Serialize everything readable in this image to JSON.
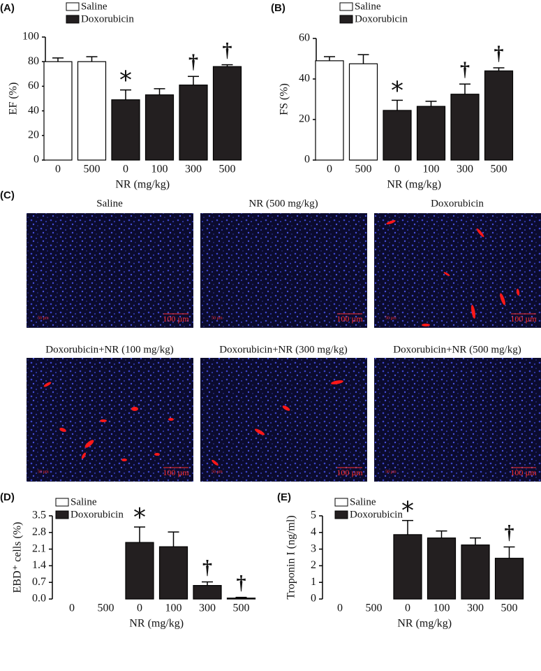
{
  "chart_data": [
    {
      "type": "bar",
      "panel_label": "(A)",
      "ylabel": "EF (%)",
      "xlabel": "NR (mg/kg)",
      "categories": [
        "0",
        "500",
        "0",
        "100",
        "300",
        "500"
      ],
      "series": [
        {
          "name": "Saline",
          "color": "#ffffff",
          "values": [
            80,
            80,
            null,
            null,
            null,
            null
          ],
          "errors": [
            3,
            4,
            null,
            null,
            null,
            null
          ]
        },
        {
          "name": "Doxorubicin",
          "color": "#231f20",
          "values": [
            null,
            null,
            49,
            53,
            61,
            76
          ],
          "errors": [
            null,
            null,
            8,
            5,
            7,
            1.5
          ]
        }
      ],
      "markers": [
        null,
        null,
        "*",
        null,
        "†",
        "†"
      ],
      "ylim": [
        0,
        100
      ],
      "yticks": [
        0,
        20,
        40,
        60,
        80,
        100
      ]
    },
    {
      "type": "bar",
      "panel_label": "(B)",
      "ylabel": "FS (%)",
      "xlabel": "NR (mg/kg)",
      "categories": [
        "0",
        "500",
        "0",
        "100",
        "300",
        "500"
      ],
      "series": [
        {
          "name": "Saline",
          "color": "#ffffff",
          "values": [
            49,
            47.5,
            null,
            null,
            null,
            null
          ],
          "errors": [
            2,
            4.5,
            null,
            null,
            null,
            null
          ]
        },
        {
          "name": "Doxorubicin",
          "color": "#231f20",
          "values": [
            null,
            null,
            24.5,
            26.5,
            32.5,
            44
          ],
          "errors": [
            null,
            null,
            5,
            2.5,
            5,
            1.5
          ]
        }
      ],
      "markers": [
        null,
        null,
        "*",
        null,
        "†",
        "†"
      ],
      "ylim": [
        0,
        60
      ],
      "yticks": [
        0,
        20,
        40,
        60
      ]
    },
    {
      "type": "bar",
      "panel_label": "(D)",
      "ylabel": "EBD⁺ cells (%)",
      "xlabel": "NR (mg/kg)",
      "categories": [
        "0",
        "500",
        "0",
        "100",
        "300",
        "500"
      ],
      "series": [
        {
          "name": "Saline",
          "color": "#ffffff",
          "values": [
            0,
            0,
            null,
            null,
            null,
            null
          ]
        },
        {
          "name": "Doxorubicin",
          "color": "#231f20",
          "values": [
            null,
            null,
            2.38,
            2.2,
            0.57,
            0.04
          ],
          "errors": [
            null,
            null,
            0.65,
            0.62,
            0.15,
            0.03
          ]
        }
      ],
      "markers": [
        null,
        null,
        "*",
        null,
        "†",
        "†"
      ],
      "ylim": [
        0,
        3.5
      ],
      "yticks": [
        {
          "value": 0,
          "label": "0.0"
        },
        0.7,
        1.4,
        2.1,
        2.8,
        3.5
      ]
    },
    {
      "type": "bar",
      "panel_label": "(E)",
      "ylabel": "Troponin I (ng/ml)",
      "xlabel": "NR (mg/kg)",
      "categories": [
        "0",
        "500",
        "0",
        "100",
        "300",
        "500"
      ],
      "series": [
        {
          "name": "Saline",
          "color": "#ffffff",
          "values": [
            0,
            0,
            null,
            null,
            null,
            null
          ]
        },
        {
          "name": "Doxorubicin",
          "color": "#231f20",
          "values": [
            null,
            null,
            3.87,
            3.67,
            3.25,
            2.45
          ],
          "errors": [
            null,
            null,
            0.85,
            0.42,
            0.42,
            0.68
          ]
        }
      ],
      "markers": [
        null,
        null,
        "*",
        null,
        null,
        "†"
      ],
      "ylim": [
        0,
        5
      ],
      "yticks": [
        0,
        1,
        2,
        3,
        4,
        5
      ]
    }
  ],
  "panel_c": {
    "panel_label": "(C)",
    "images": [
      {
        "title": "Saline",
        "scale_bar": "100 µm",
        "small_label": "50 µm"
      },
      {
        "title": "NR (500 mg/kg)",
        "scale_bar": "100 µm",
        "small_label": "50 µm"
      },
      {
        "title": "Doxorubicin",
        "scale_bar": "100 µm",
        "small_label": "50 µm"
      },
      {
        "title": "Doxorubicin+NR (100 mg/kg)",
        "scale_bar": "100 µm",
        "small_label": "50 µm"
      },
      {
        "title": "Doxorubicin+NR (300 mg/kg)",
        "scale_bar": "100 µm",
        "small_label": "50 µm"
      },
      {
        "title": "Doxorubicin+NR (500 mg/kg)",
        "scale_bar": "100 µm",
        "small_label": "50 µm"
      }
    ]
  }
}
